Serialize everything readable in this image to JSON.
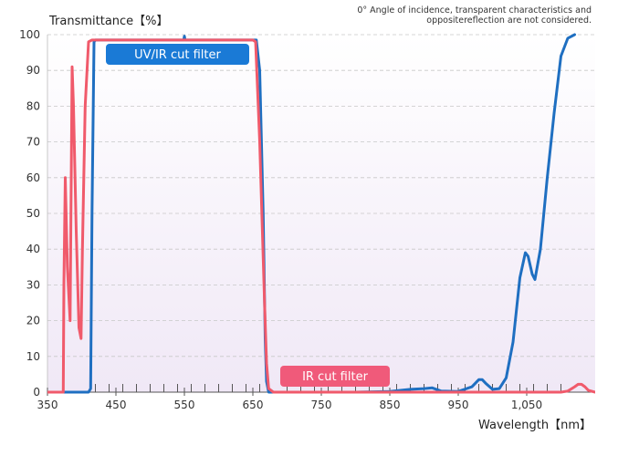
{
  "note": {
    "line1": "0° Angle of incidence, transparent characteristics and",
    "line2": "oppositereflection are not considered."
  },
  "chart_data": {
    "type": "line",
    "ylabel": "Transmittance【%】",
    "xlabel": "Wavelength【nm】",
    "xlim": [
      350,
      1150
    ],
    "ylim": [
      0,
      100
    ],
    "yticks": [
      0,
      10,
      20,
      30,
      40,
      50,
      60,
      70,
      80,
      90,
      100
    ],
    "xticks": [
      350,
      450,
      550,
      650,
      750,
      850,
      950,
      1050
    ],
    "xtick_labels": [
      "350",
      "450",
      "550",
      "650",
      "750",
      "850",
      "950",
      "1,050"
    ],
    "minor_xticks": [
      420,
      440,
      460,
      480,
      500,
      520,
      540,
      560,
      580,
      600,
      620,
      640,
      660,
      700,
      720,
      740,
      760,
      780,
      800,
      820,
      840,
      860,
      880,
      900,
      920,
      940,
      960,
      980,
      1000,
      1020,
      1040,
      1060,
      1080,
      1100
    ],
    "grid": true,
    "series": [
      {
        "name": "UV/IR cut filter",
        "color": "#1f6fc1",
        "x": [
          350,
          410,
          413,
          415,
          418,
          420,
          430,
          500,
          549,
          550,
          551,
          600,
          650,
          655,
          660,
          665,
          668,
          670,
          673,
          680,
          700,
          800,
          850,
          880,
          900,
          912,
          925,
          950,
          970,
          980,
          985,
          990,
          1000,
          1010,
          1020,
          1030,
          1040,
          1048,
          1052,
          1058,
          1062,
          1070,
          1080,
          1090,
          1100,
          1110,
          1120
        ],
        "y": [
          0,
          0,
          1,
          50,
          98,
          98.5,
          98.5,
          98.5,
          98.5,
          99.6,
          98.5,
          98.5,
          98.5,
          98.5,
          90,
          50,
          15,
          3,
          0,
          0,
          0,
          0,
          0.2,
          0.8,
          1,
          1.2,
          0.3,
          0.2,
          1.5,
          3.5,
          3.5,
          2.5,
          0.8,
          1,
          4,
          14,
          32,
          39,
          38,
          33,
          31.5,
          40,
          60,
          78,
          94,
          99,
          100
        ]
      },
      {
        "name": "IR cut filter",
        "color": "#f05a6b",
        "x": [
          350,
          373,
          374,
          376,
          379,
          383,
          386,
          388,
          392,
          396,
          399,
          401,
          405,
          410,
          415,
          418,
          420,
          500,
          600,
          645,
          650,
          654,
          660,
          667,
          670,
          673,
          680,
          700,
          800,
          900,
          1000,
          1100,
          1110,
          1120,
          1125,
          1130,
          1135,
          1140,
          1150
        ],
        "y": [
          0,
          0,
          30,
          60,
          35,
          20,
          91,
          80,
          45,
          18,
          15,
          40,
          80,
          98,
          98.5,
          98.5,
          98.5,
          98.5,
          98.5,
          98.5,
          98.5,
          98,
          70,
          25,
          8,
          1,
          0,
          0,
          0,
          0,
          0,
          0,
          0.3,
          1.5,
          2.2,
          2.2,
          1.5,
          0.5,
          0
        ]
      }
    ],
    "annotations": [
      {
        "text": "UV/IR cut filter",
        "series": 0
      },
      {
        "text": "IR cut filter",
        "series": 1
      }
    ]
  }
}
